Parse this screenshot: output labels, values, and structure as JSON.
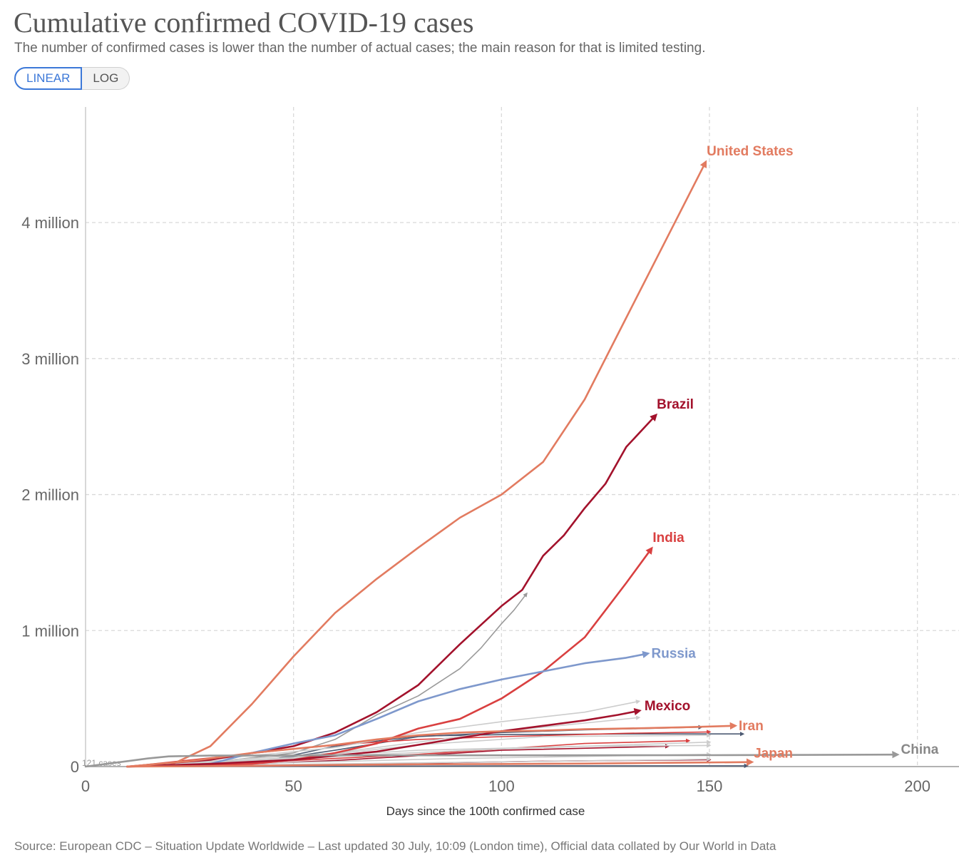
{
  "header": {
    "title": "Cumulative confirmed COVID-19 cases",
    "subtitle": "The number of confirmed cases is lower than the number of actual cases; the main reason for that is limited testing."
  },
  "scale_toggle": {
    "linear_label": "LINEAR",
    "log_label": "LOG",
    "selected": "LINEAR"
  },
  "footer": {
    "source": "Source: European CDC – Situation Update Worldwide – Last updated 30 July, 10:09 (London time), Official data collated by Our World in Data"
  },
  "chart_data": {
    "type": "line",
    "title": "Cumulative confirmed COVID-19 cases",
    "xlabel": "Days since the 100th confirmed case",
    "ylabel": "",
    "xlim": [
      0,
      210
    ],
    "ylim": [
      0,
      4850000
    ],
    "x_ticks": [
      0,
      50,
      100,
      150,
      200
    ],
    "x_tick_labels": [
      "0",
      "50",
      "100",
      "150",
      "200"
    ],
    "y_ticks": [
      0,
      1000000,
      2000000,
      3000000,
      4000000
    ],
    "y_tick_labels": [
      "0",
      "1 million",
      "2 million",
      "3 million",
      "4 million"
    ],
    "grid": true,
    "start_annotation": "121 cases",
    "series": [
      {
        "name": "United States",
        "color": "#e27b60",
        "points": [
          [
            10,
            0
          ],
          [
            20,
            5000
          ],
          [
            30,
            150000
          ],
          [
            40,
            460000
          ],
          [
            50,
            810000
          ],
          [
            60,
            1130000
          ],
          [
            70,
            1380000
          ],
          [
            80,
            1610000
          ],
          [
            90,
            1830000
          ],
          [
            100,
            2000000
          ],
          [
            110,
            2240000
          ],
          [
            120,
            2700000
          ],
          [
            130,
            3300000
          ],
          [
            140,
            3900000
          ],
          [
            149,
            4440000
          ]
        ]
      },
      {
        "name": "Brazil",
        "color": "#a3122c",
        "points": [
          [
            10,
            0
          ],
          [
            30,
            50000
          ],
          [
            50,
            150000
          ],
          [
            60,
            250000
          ],
          [
            70,
            400000
          ],
          [
            80,
            600000
          ],
          [
            90,
            900000
          ],
          [
            100,
            1180000
          ],
          [
            105,
            1300000
          ],
          [
            110,
            1550000
          ],
          [
            115,
            1700000
          ],
          [
            120,
            1900000
          ],
          [
            125,
            2080000
          ],
          [
            130,
            2350000
          ],
          [
            137,
            2580000
          ]
        ]
      },
      {
        "name": "India",
        "color": "#d94040",
        "points": [
          [
            10,
            0
          ],
          [
            40,
            20000
          ],
          [
            50,
            50000
          ],
          [
            60,
            100000
          ],
          [
            70,
            170000
          ],
          [
            80,
            280000
          ],
          [
            90,
            350000
          ],
          [
            100,
            500000
          ],
          [
            110,
            700000
          ],
          [
            120,
            950000
          ],
          [
            125,
            1150000
          ],
          [
            130,
            1350000
          ],
          [
            136,
            1600000
          ]
        ]
      },
      {
        "name": "Russia",
        "color": "#7e98cc",
        "points": [
          [
            10,
            0
          ],
          [
            30,
            20000
          ],
          [
            40,
            100000
          ],
          [
            50,
            170000
          ],
          [
            60,
            230000
          ],
          [
            70,
            350000
          ],
          [
            80,
            480000
          ],
          [
            90,
            570000
          ],
          [
            100,
            640000
          ],
          [
            110,
            700000
          ],
          [
            120,
            760000
          ],
          [
            130,
            800000
          ],
          [
            135,
            830000
          ]
        ]
      },
      {
        "name": "Mexico",
        "color": "#a3122c",
        "points": [
          [
            10,
            0
          ],
          [
            30,
            20000
          ],
          [
            50,
            50000
          ],
          [
            60,
            80000
          ],
          [
            70,
            110000
          ],
          [
            80,
            160000
          ],
          [
            90,
            210000
          ],
          [
            100,
            260000
          ],
          [
            110,
            300000
          ],
          [
            120,
            340000
          ],
          [
            128,
            380000
          ],
          [
            133,
            410000
          ]
        ]
      },
      {
        "name": "Iran",
        "color": "#e27b60",
        "points": [
          [
            10,
            0
          ],
          [
            25,
            40000
          ],
          [
            40,
            100000
          ],
          [
            50,
            130000
          ],
          [
            60,
            160000
          ],
          [
            70,
            200000
          ],
          [
            80,
            230000
          ],
          [
            90,
            250000
          ],
          [
            100,
            260000
          ],
          [
            110,
            265000
          ],
          [
            120,
            275000
          ],
          [
            130,
            280000
          ],
          [
            145,
            290000
          ],
          [
            156,
            300000
          ]
        ]
      },
      {
        "name": "Japan",
        "color": "#e27b60",
        "points": [
          [
            10,
            0
          ],
          [
            40,
            5000
          ],
          [
            60,
            12000
          ],
          [
            80,
            17000
          ],
          [
            100,
            19000
          ],
          [
            120,
            22000
          ],
          [
            140,
            28000
          ],
          [
            160,
            33000
          ]
        ]
      },
      {
        "name": "China",
        "color": "#999999",
        "points": [
          [
            0,
            0
          ],
          [
            5,
            20000
          ],
          [
            10,
            40000
          ],
          [
            15,
            60000
          ],
          [
            20,
            75000
          ],
          [
            30,
            81000
          ],
          [
            60,
            83000
          ],
          [
            100,
            83000
          ],
          [
            150,
            84000
          ],
          [
            195,
            88000
          ]
        ]
      },
      {
        "name": "",
        "color": "#9a9a9a",
        "points": [
          [
            10,
            0
          ],
          [
            30,
            30000
          ],
          [
            50,
            100000
          ],
          [
            60,
            200000
          ],
          [
            70,
            380000
          ],
          [
            80,
            520000
          ],
          [
            90,
            720000
          ],
          [
            95,
            870000
          ],
          [
            100,
            1050000
          ],
          [
            103,
            1150000
          ],
          [
            106,
            1270000
          ]
        ]
      },
      {
        "name": "",
        "color": "#4d5b73",
        "points": [
          [
            10,
            0
          ],
          [
            40,
            30000
          ],
          [
            60,
            120000
          ],
          [
            80,
            220000
          ],
          [
            100,
            250000
          ],
          [
            120,
            270000
          ],
          [
            148,
            290000
          ]
        ]
      },
      {
        "name": "",
        "color": "#4d5b73",
        "points": [
          [
            10,
            0
          ],
          [
            40,
            20000
          ],
          [
            60,
            150000
          ],
          [
            80,
            225000
          ],
          [
            100,
            235000
          ],
          [
            130,
            240000
          ],
          [
            158,
            240000
          ]
        ]
      },
      {
        "name": "",
        "color": "#4d5b73",
        "points": [
          [
            10,
            0
          ],
          [
            60,
            2000
          ],
          [
            100,
            5000
          ],
          [
            159,
            6000
          ]
        ]
      },
      {
        "name": "",
        "color": "#d94040",
        "points": [
          [
            10,
            0
          ],
          [
            35,
            80000
          ],
          [
            50,
            130000
          ],
          [
            65,
            170000
          ],
          [
            80,
            200000
          ],
          [
            100,
            220000
          ],
          [
            130,
            245000
          ],
          [
            150,
            255000
          ]
        ]
      },
      {
        "name": "",
        "color": "#d94040",
        "points": [
          [
            10,
            0
          ],
          [
            40,
            30000
          ],
          [
            60,
            60000
          ],
          [
            80,
            90000
          ],
          [
            100,
            130000
          ],
          [
            120,
            170000
          ],
          [
            145,
            190000
          ]
        ]
      },
      {
        "name": "",
        "color": "#a3122c",
        "points": [
          [
            10,
            0
          ],
          [
            40,
            20000
          ],
          [
            60,
            45000
          ],
          [
            80,
            80000
          ],
          [
            100,
            120000
          ],
          [
            140,
            150000
          ]
        ]
      },
      {
        "name": "",
        "color": "#a3122c",
        "points": [
          [
            10,
            0
          ],
          [
            50,
            10000
          ],
          [
            80,
            25000
          ],
          [
            110,
            40000
          ],
          [
            150,
            50000
          ]
        ]
      },
      {
        "name": "",
        "color": "#cccccc",
        "points": [
          [
            10,
            0
          ],
          [
            40,
            60000
          ],
          [
            60,
            100000
          ],
          [
            80,
            180000
          ],
          [
            100,
            260000
          ],
          [
            120,
            320000
          ],
          [
            133,
            360000
          ]
        ]
      },
      {
        "name": "",
        "color": "#cccccc",
        "points": [
          [
            10,
            0
          ],
          [
            40,
            80000
          ],
          [
            60,
            140000
          ],
          [
            80,
            250000
          ],
          [
            100,
            330000
          ],
          [
            120,
            400000
          ],
          [
            133,
            480000
          ]
        ]
      },
      {
        "name": "",
        "color": "#cccccc",
        "points": [
          [
            10,
            0
          ],
          [
            50,
            60000
          ],
          [
            80,
            160000
          ],
          [
            110,
            220000
          ],
          [
            150,
            230000
          ]
        ]
      },
      {
        "name": "",
        "color": "#cccccc",
        "points": [
          [
            10,
            0
          ],
          [
            40,
            40000
          ],
          [
            70,
            90000
          ],
          [
            100,
            130000
          ],
          [
            130,
            160000
          ],
          [
            150,
            180000
          ]
        ]
      },
      {
        "name": "",
        "color": "#cccccc",
        "points": [
          [
            10,
            0
          ],
          [
            50,
            30000
          ],
          [
            90,
            60000
          ],
          [
            130,
            80000
          ],
          [
            150,
            90000
          ]
        ]
      },
      {
        "name": "",
        "color": "#cccccc",
        "points": [
          [
            10,
            0
          ],
          [
            60,
            20000
          ],
          [
            100,
            35000
          ],
          [
            140,
            50000
          ],
          [
            150,
            55000
          ]
        ]
      },
      {
        "name": "",
        "color": "#cccccc",
        "points": [
          [
            10,
            0
          ],
          [
            40,
            50000
          ],
          [
            80,
            120000
          ],
          [
            120,
            150000
          ],
          [
            150,
            155000
          ]
        ]
      }
    ]
  }
}
